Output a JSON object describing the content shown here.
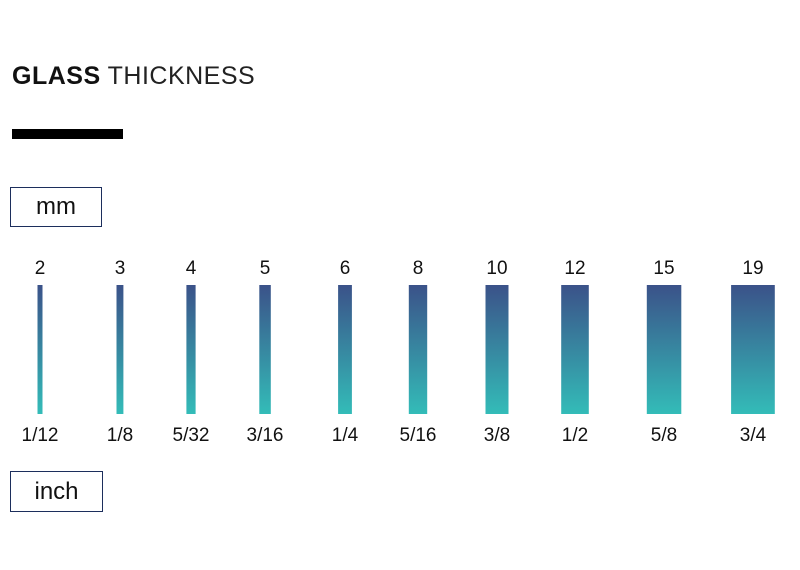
{
  "title": {
    "bold": "GLASS",
    "light": "THICKNESS"
  },
  "units": {
    "top": "mm",
    "bottom": "inch"
  },
  "colors": {
    "bar_top": "#3b5289",
    "bar_bottom": "#33bcb8",
    "accent_bar": "#000000",
    "box_border": "#1c2e5c"
  },
  "chart_data": {
    "type": "bar",
    "series": [
      {
        "values": [
          2,
          3,
          4,
          5,
          6,
          8,
          10,
          12,
          15,
          19
        ]
      }
    ],
    "categories": [
      "2",
      "3",
      "4",
      "5",
      "6",
      "8",
      "10",
      "12",
      "15",
      "19"
    ],
    "top_labels": [
      "2",
      "3",
      "4",
      "5",
      "6",
      "8",
      "10",
      "12",
      "15",
      "19"
    ],
    "bottom_labels": [
      "1/12",
      "1/8",
      "5/32",
      "3/16",
      "1/4",
      "5/16",
      "3/8",
      "1/2",
      "5/8",
      "3/4"
    ],
    "xlabel": "",
    "ylabel": "",
    "grid": false
  }
}
